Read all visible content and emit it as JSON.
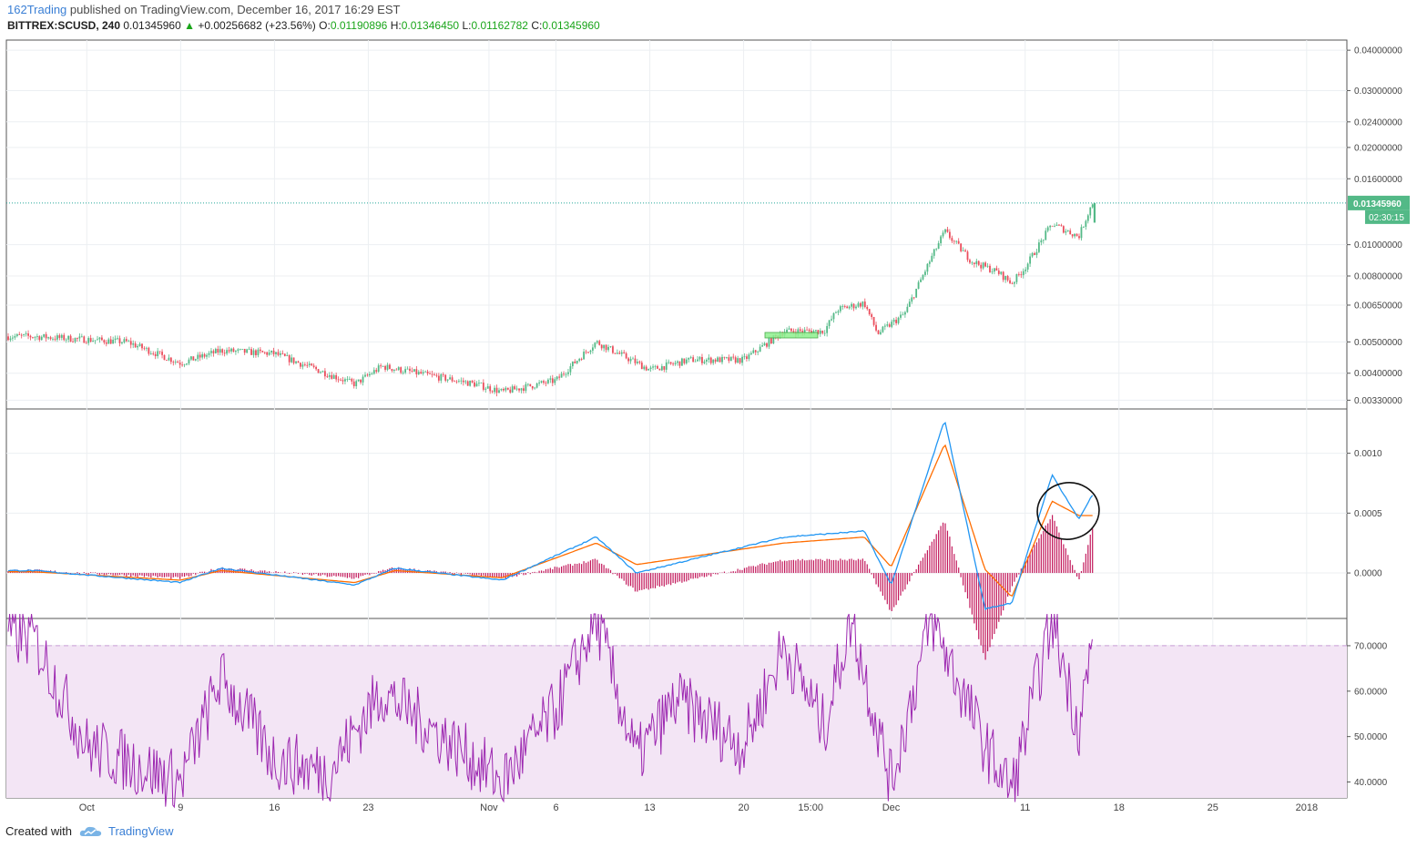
{
  "header": {
    "author": "162Trading",
    "published_text": "published on TradingView.com, December 16, 2017 16:29 EST"
  },
  "quote": {
    "symbol": "BITTREX:SCUSD, 240",
    "last": "0.01345960",
    "change": "+0.00256682 (+23.56%)",
    "o_label": "O:",
    "o": "0.01190896",
    "h_label": "H:",
    "h": "0.01346450",
    "l_label": "L:",
    "l": "0.01162782",
    "c_label": "C:",
    "c": "0.01345960"
  },
  "footer": {
    "created_with": "Created with",
    "brand": "TradingView"
  },
  "colors": {
    "up": "#53b987",
    "down": "#eb4d5c",
    "macd": "#2196f3",
    "signal": "#ff6d00",
    "hist": "#c2185b",
    "rsi": "#9c27b0",
    "rsi_band": "#f3e5f5",
    "price_line": "#26a69a"
  },
  "price_label": {
    "price": "0.01345960",
    "countdown": "02:30:15"
  },
  "chart_data": [
    {
      "type": "candlestick",
      "name": "Price",
      "y_scale": "log",
      "ylim": [
        0.0031,
        0.043
      ],
      "y_ticks": [
        "0.04000000",
        "0.03000000",
        "0.02400000",
        "0.02000000",
        "0.01600000",
        "0.01000000",
        "0.00800000",
        "0.00650000",
        "0.00500000",
        "0.00400000",
        "0.00330000"
      ],
      "y_tick_values": [
        0.04,
        0.03,
        0.024,
        0.02,
        0.016,
        0.01,
        0.008,
        0.0065,
        0.005,
        0.004,
        0.0033
      ],
      "x_labels": [
        "Oct",
        "9",
        "16",
        "23",
        "Nov",
        "6",
        "13",
        "20",
        "15:00",
        "Dec",
        "11",
        "18",
        "25",
        "2018"
      ],
      "key_points": [
        {
          "date": "2017-09-28",
          "close": 0.0052
        },
        {
          "date": "2017-10-05",
          "close": 0.005
        },
        {
          "date": "2017-10-09",
          "close": 0.0043
        },
        {
          "date": "2017-10-12",
          "close": 0.0047
        },
        {
          "date": "2017-10-16",
          "close": 0.0046
        },
        {
          "date": "2017-10-22",
          "close": 0.0037
        },
        {
          "date": "2017-10-24",
          "close": 0.0042
        },
        {
          "date": "2017-10-31",
          "close": 0.0037
        },
        {
          "date": "2017-11-02",
          "close": 0.0035
        },
        {
          "date": "2017-11-06",
          "close": 0.0038
        },
        {
          "date": "2017-11-09",
          "close": 0.005
        },
        {
          "date": "2017-11-13",
          "close": 0.0041
        },
        {
          "date": "2017-11-16",
          "close": 0.0044
        },
        {
          "date": "2017-11-20",
          "close": 0.0044
        },
        {
          "date": "2017-11-23",
          "close": 0.0054
        },
        {
          "date": "2017-11-26",
          "close": 0.0054
        },
        {
          "date": "2017-11-27",
          "close": 0.0063
        },
        {
          "date": "2017-11-29",
          "close": 0.0066
        },
        {
          "date": "2017-11-30",
          "close": 0.0053
        },
        {
          "date": "2017-12-02",
          "close": 0.0061
        },
        {
          "date": "2017-12-04",
          "close": 0.0091
        },
        {
          "date": "2017-12-05",
          "close": 0.011
        },
        {
          "date": "2017-12-07",
          "close": 0.0089
        },
        {
          "date": "2017-12-09",
          "close": 0.0082
        },
        {
          "date": "2017-12-10",
          "close": 0.0076
        },
        {
          "date": "2017-12-11",
          "close": 0.0085
        },
        {
          "date": "2017-12-13",
          "close": 0.0116
        },
        {
          "date": "2017-12-15",
          "close": 0.0106
        },
        {
          "date": "2017-12-16",
          "close": 0.01346
        }
      ],
      "last_price": 0.0134596
    },
    {
      "type": "line",
      "name": "MACD",
      "ylim": [
        -0.00038,
        0.00137
      ],
      "y_ticks": [
        "0.0010",
        "0.0005",
        "0.0000"
      ],
      "y_tick_values": [
        0.001,
        0.0005,
        0
      ],
      "series": [
        {
          "values_at_dates": [
            {
              "date": "2017-09-28",
              "macd": 2e-05,
              "signal": 1e-05,
              "hist": 1e-05
            },
            {
              "date": "2017-10-09",
              "macd": -8e-05,
              "signal": -6e-05,
              "hist": -2e-05
            },
            {
              "date": "2017-10-12",
              "macd": 4e-05,
              "signal": 2e-05,
              "hist": 2e-05
            },
            {
              "date": "2017-10-22",
              "macd": -0.0001,
              "signal": -8e-05,
              "hist": -2e-05
            },
            {
              "date": "2017-10-25",
              "macd": 4e-05,
              "signal": 2e-05,
              "hist": 2e-05
            },
            {
              "date": "2017-11-02",
              "macd": -6e-05,
              "signal": -4e-05,
              "hist": -2e-05
            },
            {
              "date": "2017-11-09",
              "macd": 0.0003,
              "signal": 0.00025,
              "hist": 5e-05
            },
            {
              "date": "2017-11-12",
              "macd": 0.0,
              "signal": 7e-05,
              "hist": -7e-05
            },
            {
              "date": "2017-11-23",
              "macd": 0.0003,
              "signal": 0.00025,
              "hist": 5e-05
            },
            {
              "date": "2017-11-29",
              "macd": 0.00035,
              "signal": 0.0003,
              "hist": 5e-05
            },
            {
              "date": "2017-12-01",
              "macd": -0.0001,
              "signal": 5e-05,
              "hist": -0.00015
            },
            {
              "date": "2017-12-05",
              "macd": 0.00128,
              "signal": 0.00108,
              "hist": 0.0002
            },
            {
              "date": "2017-12-08",
              "macd": -0.0003,
              "signal": 3e-05,
              "hist": -0.00033
            },
            {
              "date": "2017-12-10",
              "macd": -0.00025,
              "signal": -0.0002,
              "hist": -5e-05
            },
            {
              "date": "2017-12-13",
              "macd": 0.00082,
              "signal": 0.0006,
              "hist": 0.00022
            },
            {
              "date": "2017-12-15",
              "macd": 0.00045,
              "signal": 0.00048,
              "hist": -3e-05
            },
            {
              "date": "2017-12-16",
              "macd": 0.00065,
              "signal": 0.00048,
              "hist": 0.00017
            }
          ]
        }
      ]
    },
    {
      "type": "line",
      "name": "RSI",
      "ylim": [
        36.5,
        76
      ],
      "y_ticks": [
        "70.0000",
        "60.0000",
        "50.0000",
        "40.0000"
      ],
      "y_tick_values": [
        70,
        60,
        50,
        40
      ],
      "band": [
        30,
        70
      ],
      "series": [
        {
          "values_at_dates": [
            {
              "date": "2017-09-28",
              "rsi": 72
            },
            {
              "date": "2017-10-02",
              "rsi": 48
            },
            {
              "date": "2017-10-09",
              "rsi": 40
            },
            {
              "date": "2017-10-12",
              "rsi": 63
            },
            {
              "date": "2017-10-16",
              "rsi": 45
            },
            {
              "date": "2017-10-20",
              "rsi": 42
            },
            {
              "date": "2017-10-24",
              "rsi": 60
            },
            {
              "date": "2017-11-02",
              "rsi": 40
            },
            {
              "date": "2017-11-06",
              "rsi": 56
            },
            {
              "date": "2017-11-09",
              "rsi": 76
            },
            {
              "date": "2017-11-12",
              "rsi": 45
            },
            {
              "date": "2017-11-15",
              "rsi": 58
            },
            {
              "date": "2017-11-20",
              "rsi": 48
            },
            {
              "date": "2017-11-23",
              "rsi": 70
            },
            {
              "date": "2017-11-26",
              "rsi": 52
            },
            {
              "date": "2017-11-28",
              "rsi": 76
            },
            {
              "date": "2017-12-01",
              "rsi": 40
            },
            {
              "date": "2017-12-04",
              "rsi": 76
            },
            {
              "date": "2017-12-08",
              "rsi": 48
            },
            {
              "date": "2017-12-10",
              "rsi": 38
            },
            {
              "date": "2017-12-13",
              "rsi": 76
            },
            {
              "date": "2017-12-15",
              "rsi": 52
            },
            {
              "date": "2017-12-16",
              "rsi": 70
            }
          ]
        }
      ]
    }
  ]
}
